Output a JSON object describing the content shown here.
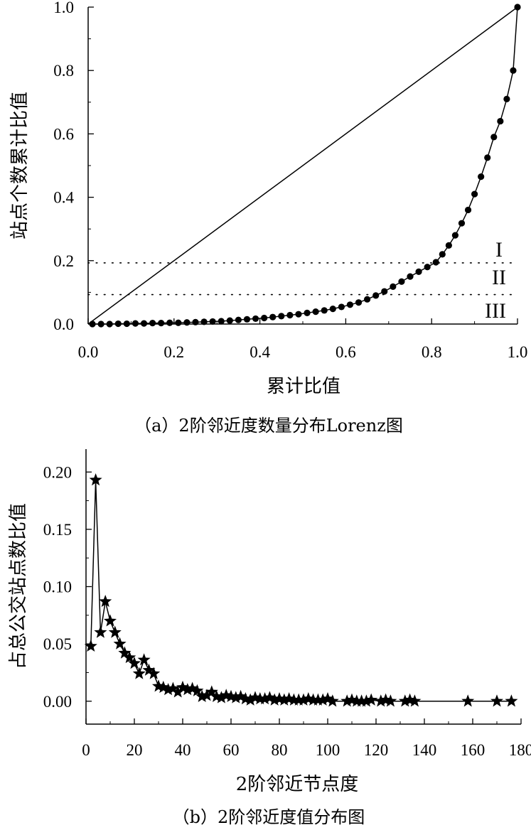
{
  "chart_data": [
    {
      "type": "line",
      "xlabel": "累计比值",
      "ylabel": "站点个数累计比值",
      "caption": "（a）2阶邻近度数量分布Lorenz图",
      "xlim": [
        0,
        1
      ],
      "ylim": [
        0,
        1
      ],
      "x_ticks": [
        "0.0",
        "0.2",
        "0.4",
        "0.6",
        "0.8",
        "1.0"
      ],
      "y_ticks": [
        "0.0",
        "0.2",
        "0.4",
        "0.6",
        "0.8",
        "1.0"
      ],
      "thresholds": [
        {
          "y": 0.193
        },
        {
          "y": 0.093
        }
      ],
      "zone_labels": [
        "I",
        "II",
        "III"
      ],
      "series": [
        {
          "marker": "circle",
          "x": [
            0.01,
            0.03,
            0.05,
            0.07,
            0.09,
            0.11,
            0.13,
            0.15,
            0.17,
            0.19,
            0.21,
            0.23,
            0.25,
            0.27,
            0.29,
            0.31,
            0.33,
            0.35,
            0.37,
            0.39,
            0.41,
            0.43,
            0.45,
            0.47,
            0.49,
            0.51,
            0.53,
            0.55,
            0.57,
            0.59,
            0.61,
            0.63,
            0.65,
            0.67,
            0.69,
            0.71,
            0.73,
            0.75,
            0.77,
            0.79,
            0.81,
            0.825,
            0.84,
            0.855,
            0.87,
            0.885,
            0.9,
            0.915,
            0.93,
            0.945,
            0.96,
            0.975,
            0.99,
            1.0
          ],
          "y": [
            0.0,
            0.0,
            0.0,
            0.001,
            0.001,
            0.002,
            0.002,
            0.003,
            0.003,
            0.004,
            0.004,
            0.005,
            0.006,
            0.007,
            0.008,
            0.009,
            0.011,
            0.013,
            0.015,
            0.017,
            0.019,
            0.022,
            0.025,
            0.028,
            0.031,
            0.035,
            0.039,
            0.043,
            0.048,
            0.054,
            0.061,
            0.068,
            0.078,
            0.09,
            0.103,
            0.118,
            0.134,
            0.15,
            0.165,
            0.18,
            0.195,
            0.22,
            0.248,
            0.28,
            0.318,
            0.36,
            0.41,
            0.465,
            0.525,
            0.59,
            0.64,
            0.71,
            0.8,
            1.0
          ]
        },
        {
          "marker": "none",
          "x": [
            0,
            1
          ],
          "y": [
            0,
            1
          ]
        }
      ]
    },
    {
      "type": "line",
      "xlabel": "2阶邻近节点度",
      "ylabel": "占总公交站点数比值",
      "caption": "（b）2阶邻近度值分布图",
      "xlim": [
        0,
        180
      ],
      "ylim": [
        -0.02,
        0.22
      ],
      "x_ticks": [
        "0",
        "20",
        "40",
        "60",
        "80",
        "100",
        "120",
        "140",
        "160",
        "180"
      ],
      "y_ticks": [
        "0.00",
        "0.05",
        "0.10",
        "0.15",
        "0.20"
      ],
      "series": [
        {
          "marker": "star",
          "x": [
            2,
            4,
            6,
            8,
            10,
            12,
            14,
            16,
            18,
            20,
            22,
            24,
            26,
            28,
            30,
            32,
            34,
            36,
            38,
            40,
            42,
            44,
            46,
            48,
            50,
            52,
            54,
            56,
            58,
            60,
            62,
            64,
            66,
            68,
            70,
            72,
            74,
            76,
            78,
            80,
            82,
            84,
            86,
            88,
            90,
            92,
            94,
            96,
            98,
            100,
            102,
            108,
            110,
            112,
            114,
            116,
            118,
            122,
            124,
            126,
            132,
            134,
            136,
            158,
            170,
            176
          ],
          "y": [
            0.048,
            0.193,
            0.06,
            0.087,
            0.07,
            0.06,
            0.05,
            0.042,
            0.038,
            0.033,
            0.024,
            0.036,
            0.027,
            0.024,
            0.013,
            0.012,
            0.01,
            0.011,
            0.008,
            0.012,
            0.01,
            0.011,
            0.009,
            0.004,
            0.005,
            0.008,
            0.004,
            0.003,
            0.005,
            0.004,
            0.003,
            0.004,
            0.002,
            0.001,
            0.003,
            0.002,
            0.002,
            0.003,
            0.001,
            0.002,
            0.001,
            0.002,
            0.001,
            0.001,
            0.001,
            0.002,
            0.001,
            0.001,
            0.001,
            0.002,
            0.0,
            0.0,
            0.001,
            0.0,
            0.0,
            0.0,
            0.001,
            0.0,
            0.001,
            0.0,
            0.0,
            0.001,
            0.0,
            0.0,
            0.0,
            0.0
          ]
        }
      ]
    }
  ]
}
